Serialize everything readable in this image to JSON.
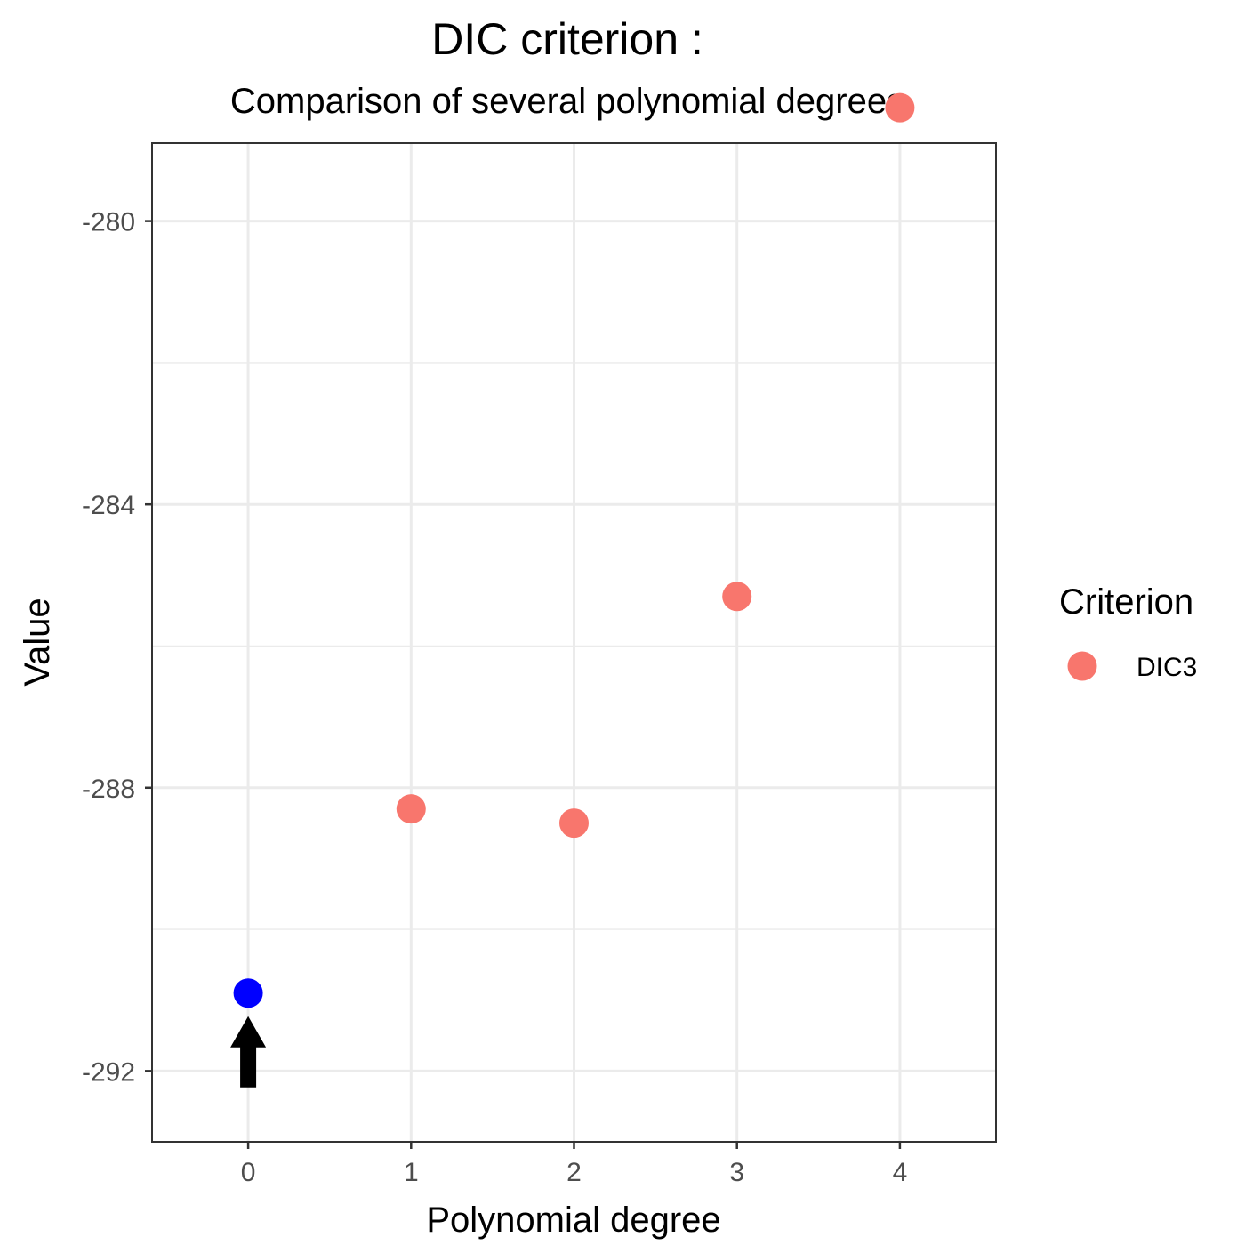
{
  "chart_data": {
    "type": "scatter",
    "title": "DIC criterion :",
    "subtitle": "Comparison of several polynomial degrees",
    "xlabel": "Polynomial degree",
    "ylabel": "Value",
    "x_ticks": [
      "0",
      "1",
      "2",
      "3",
      "4"
    ],
    "y_ticks": [
      "-280",
      "-284",
      "-288",
      "-292"
    ],
    "xlim": [
      -0.59,
      4.59
    ],
    "ylim": [
      -293.0,
      -278.9
    ],
    "grid": true,
    "legend_position": "right",
    "legend_title": "Criterion",
    "series": [
      {
        "name": "DIC3",
        "color": "#F8766D",
        "x": [
          0,
          1,
          2,
          3,
          4
        ],
        "y": [
          -290.9,
          -288.3,
          -288.5,
          -285.3,
          -278.4
        ]
      }
    ],
    "highlight": {
      "x": 0,
      "y": -290.9,
      "color": "#0000FF",
      "marker": "arrow-up"
    }
  }
}
